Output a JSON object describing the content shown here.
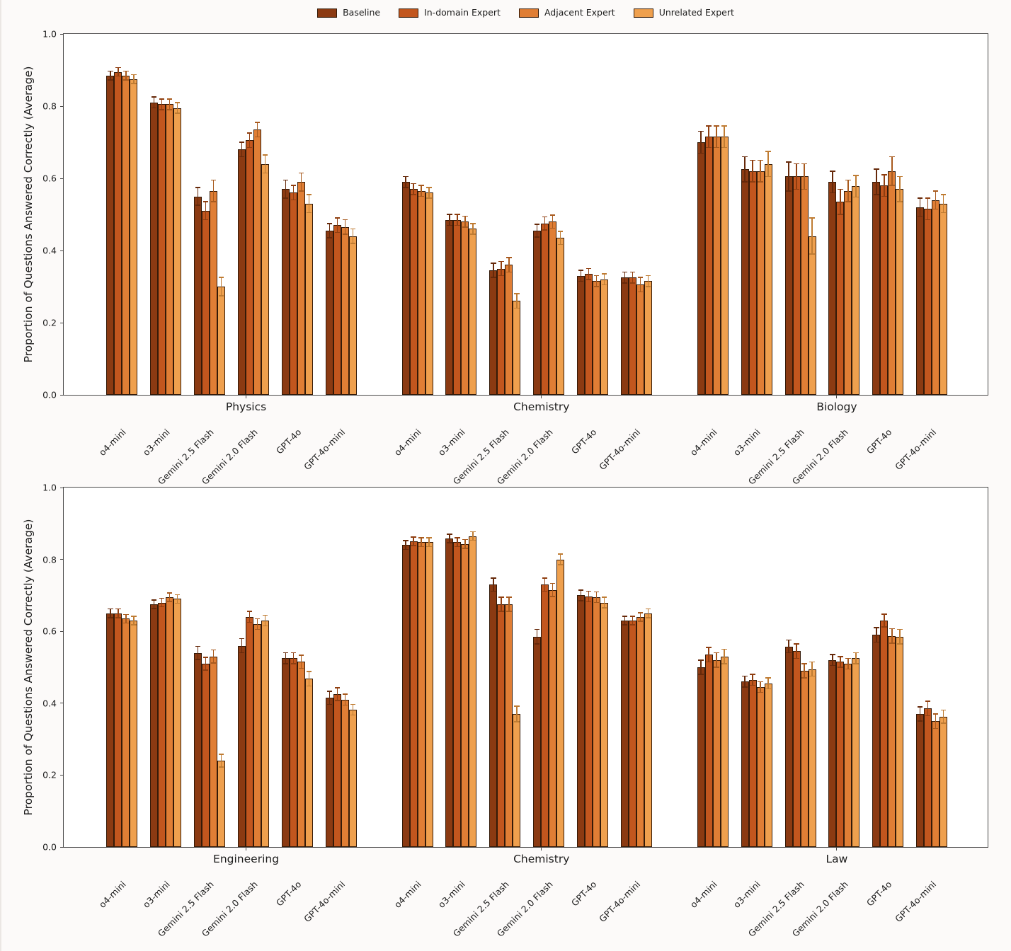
{
  "legend": {
    "items": [
      "Baseline",
      "In-domain Expert",
      "Adjacent Expert",
      "Unrelated Expert"
    ]
  },
  "colors": {
    "series": [
      "#8B3A12",
      "#C2561E",
      "#E07E35",
      "#EFA04E"
    ],
    "error_bars": [
      "#66290A",
      "#8F3E10",
      "#A85A1E",
      "#BF7C33"
    ],
    "bar_edge": "#341A08",
    "axis": "#4A4A4A",
    "text": "#1C1C1C",
    "plot_bg": "#FFFFFF",
    "page_bg": "#FCFAF9"
  },
  "chart_data": [
    {
      "type": "bar",
      "title": "",
      "xlabel": "",
      "ylabel": "Proportion of Questions Answered Correctly (Average)",
      "ylim": [
        0,
        1
      ],
      "yticks": [
        "0.0",
        "0.2",
        "0.4",
        "0.6",
        "0.8",
        "1.0"
      ],
      "grid": false,
      "legend_position": "upper center (shared, above this subplot)",
      "series_names": [
        "Baseline",
        "In-domain Expert",
        "Adjacent Expert",
        "Unrelated Expert"
      ],
      "domains": [
        {
          "label": "Physics",
          "models": [
            {
              "label": "o4-mini",
              "values": [
                0.885,
                0.895,
                0.885,
                0.875
              ],
              "errors": [
                0.012,
                0.012,
                0.012,
                0.012
              ]
            },
            {
              "label": "o3-mini",
              "values": [
                0.81,
                0.805,
                0.805,
                0.795
              ],
              "errors": [
                0.015,
                0.015,
                0.015,
                0.015
              ]
            },
            {
              "label": "Gemini 2.5 Flash",
              "values": [
                0.55,
                0.51,
                0.565,
                0.3
              ],
              "errors": [
                0.025,
                0.025,
                0.03,
                0.025
              ]
            },
            {
              "label": "Gemini 2.0 Flash",
              "values": [
                0.68,
                0.705,
                0.735,
                0.64
              ],
              "errors": [
                0.02,
                0.02,
                0.02,
                0.025
              ]
            },
            {
              "label": "GPT-4o",
              "values": [
                0.57,
                0.56,
                0.59,
                0.53
              ],
              "errors": [
                0.025,
                0.02,
                0.025,
                0.025
              ]
            },
            {
              "label": "GPT-4o-mini",
              "values": [
                0.455,
                0.47,
                0.465,
                0.44
              ],
              "errors": [
                0.02,
                0.02,
                0.02,
                0.02
              ]
            }
          ]
        },
        {
          "label": "Chemistry",
          "models": [
            {
              "label": "o4-mini",
              "values": [
                0.59,
                0.57,
                0.565,
                0.56
              ],
              "errors": [
                0.015,
                0.015,
                0.015,
                0.015
              ]
            },
            {
              "label": "o3-mini",
              "values": [
                0.485,
                0.485,
                0.48,
                0.46
              ],
              "errors": [
                0.015,
                0.015,
                0.015,
                0.015
              ]
            },
            {
              "label": "Gemini 2.5 Flash",
              "values": [
                0.345,
                0.35,
                0.36,
                0.26
              ],
              "errors": [
                0.02,
                0.02,
                0.02,
                0.02
              ]
            },
            {
              "label": "Gemini 2.0 Flash",
              "values": [
                0.455,
                0.475,
                0.48,
                0.435
              ],
              "errors": [
                0.018,
                0.018,
                0.018,
                0.018
              ]
            },
            {
              "label": "GPT-4o",
              "values": [
                0.33,
                0.335,
                0.315,
                0.32
              ],
              "errors": [
                0.015,
                0.015,
                0.015,
                0.015
              ]
            },
            {
              "label": "GPT-4o-mini",
              "values": [
                0.325,
                0.325,
                0.305,
                0.315
              ],
              "errors": [
                0.015,
                0.015,
                0.02,
                0.015
              ]
            }
          ]
        },
        {
          "label": "Biology",
          "models": [
            {
              "label": "o4-mini",
              "values": [
                0.7,
                0.715,
                0.715,
                0.715
              ],
              "errors": [
                0.03,
                0.03,
                0.03,
                0.03
              ]
            },
            {
              "label": "o3-mini",
              "values": [
                0.625,
                0.62,
                0.62,
                0.64
              ],
              "errors": [
                0.035,
                0.03,
                0.03,
                0.035
              ]
            },
            {
              "label": "Gemini 2.5 Flash",
              "values": [
                0.605,
                0.605,
                0.605,
                0.44
              ],
              "errors": [
                0.04,
                0.035,
                0.035,
                0.05
              ]
            },
            {
              "label": "Gemini 2.0 Flash",
              "values": [
                0.59,
                0.535,
                0.565,
                0.578
              ],
              "errors": [
                0.03,
                0.035,
                0.03,
                0.03
              ]
            },
            {
              "label": "GPT-4o",
              "values": [
                0.59,
                0.58,
                0.62,
                0.57
              ],
              "errors": [
                0.035,
                0.03,
                0.04,
                0.035
              ]
            },
            {
              "label": "GPT-4o-mini",
              "values": [
                0.52,
                0.515,
                0.54,
                0.53
              ],
              "errors": [
                0.025,
                0.03,
                0.025,
                0.025
              ]
            }
          ]
        }
      ]
    },
    {
      "type": "bar",
      "title": "",
      "xlabel": "",
      "ylabel": "Proportion of Questions Answered Correctly (Average)",
      "ylim": [
        0,
        1
      ],
      "yticks": [
        "0.0",
        "0.2",
        "0.4",
        "0.6",
        "0.8",
        "1.0"
      ],
      "grid": false,
      "legend_position": "none",
      "series_names": [
        "Baseline",
        "In-domain Expert",
        "Adjacent Expert",
        "Unrelated Expert"
      ],
      "domains": [
        {
          "label": "Engineering",
          "models": [
            {
              "label": "o4-mini",
              "values": [
                0.65,
                0.65,
                0.635,
                0.63
              ],
              "errors": [
                0.012,
                0.012,
                0.012,
                0.012
              ]
            },
            {
              "label": "o3-mini",
              "values": [
                0.675,
                0.68,
                0.695,
                0.69
              ],
              "errors": [
                0.012,
                0.012,
                0.012,
                0.012
              ]
            },
            {
              "label": "Gemini 2.5 Flash",
              "values": [
                0.54,
                0.51,
                0.53,
                0.24
              ],
              "errors": [
                0.018,
                0.018,
                0.018,
                0.018
              ]
            },
            {
              "label": "Gemini 2.0 Flash",
              "values": [
                0.56,
                0.64,
                0.62,
                0.63
              ],
              "errors": [
                0.02,
                0.015,
                0.015,
                0.015
              ]
            },
            {
              "label": "GPT-4o",
              "values": [
                0.525,
                0.525,
                0.515,
                0.468
              ],
              "errors": [
                0.015,
                0.015,
                0.018,
                0.02
              ]
            },
            {
              "label": "GPT-4o-mini",
              "values": [
                0.415,
                0.425,
                0.41,
                0.382
              ],
              "errors": [
                0.018,
                0.018,
                0.015,
                0.015
              ]
            }
          ]
        },
        {
          "label": "Chemistry",
          "models": [
            {
              "label": "o4-mini",
              "values": [
                0.84,
                0.85,
                0.848,
                0.848
              ],
              "errors": [
                0.012,
                0.012,
                0.012,
                0.012
              ]
            },
            {
              "label": "o3-mini",
              "values": [
                0.858,
                0.848,
                0.843,
                0.865
              ],
              "errors": [
                0.012,
                0.012,
                0.012,
                0.012
              ]
            },
            {
              "label": "Gemini 2.5 Flash",
              "values": [
                0.73,
                0.675,
                0.675,
                0.37
              ],
              "errors": [
                0.018,
                0.02,
                0.02,
                0.022
              ]
            },
            {
              "label": "Gemini 2.0 Flash",
              "values": [
                0.585,
                0.73,
                0.715,
                0.8
              ],
              "errors": [
                0.02,
                0.018,
                0.018,
                0.015
              ]
            },
            {
              "label": "GPT-4o",
              "values": [
                0.7,
                0.697,
                0.695,
                0.68
              ],
              "errors": [
                0.015,
                0.015,
                0.015,
                0.015
              ]
            },
            {
              "label": "GPT-4o-mini",
              "values": [
                0.63,
                0.63,
                0.64,
                0.65
              ],
              "errors": [
                0.012,
                0.012,
                0.012,
                0.012
              ]
            }
          ]
        },
        {
          "label": "Law",
          "models": [
            {
              "label": "o4-mini",
              "values": [
                0.5,
                0.535,
                0.52,
                0.53
              ],
              "errors": [
                0.02,
                0.02,
                0.02,
                0.02
              ]
            },
            {
              "label": "o3-mini",
              "values": [
                0.46,
                0.465,
                0.445,
                0.455
              ],
              "errors": [
                0.015,
                0.015,
                0.015,
                0.015
              ]
            },
            {
              "label": "Gemini 2.5 Flash",
              "values": [
                0.558,
                0.545,
                0.49,
                0.495
              ],
              "errors": [
                0.018,
                0.02,
                0.02,
                0.02
              ]
            },
            {
              "label": "Gemini 2.0 Flash",
              "values": [
                0.52,
                0.515,
                0.51,
                0.525
              ],
              "errors": [
                0.015,
                0.015,
                0.015,
                0.015
              ]
            },
            {
              "label": "GPT-4o",
              "values": [
                0.59,
                0.63,
                0.587,
                0.585
              ],
              "errors": [
                0.02,
                0.018,
                0.02,
                0.02
              ]
            },
            {
              "label": "GPT-4o-mini",
              "values": [
                0.37,
                0.385,
                0.35,
                0.363
              ],
              "errors": [
                0.02,
                0.02,
                0.02,
                0.018
              ]
            }
          ]
        }
      ]
    }
  ]
}
